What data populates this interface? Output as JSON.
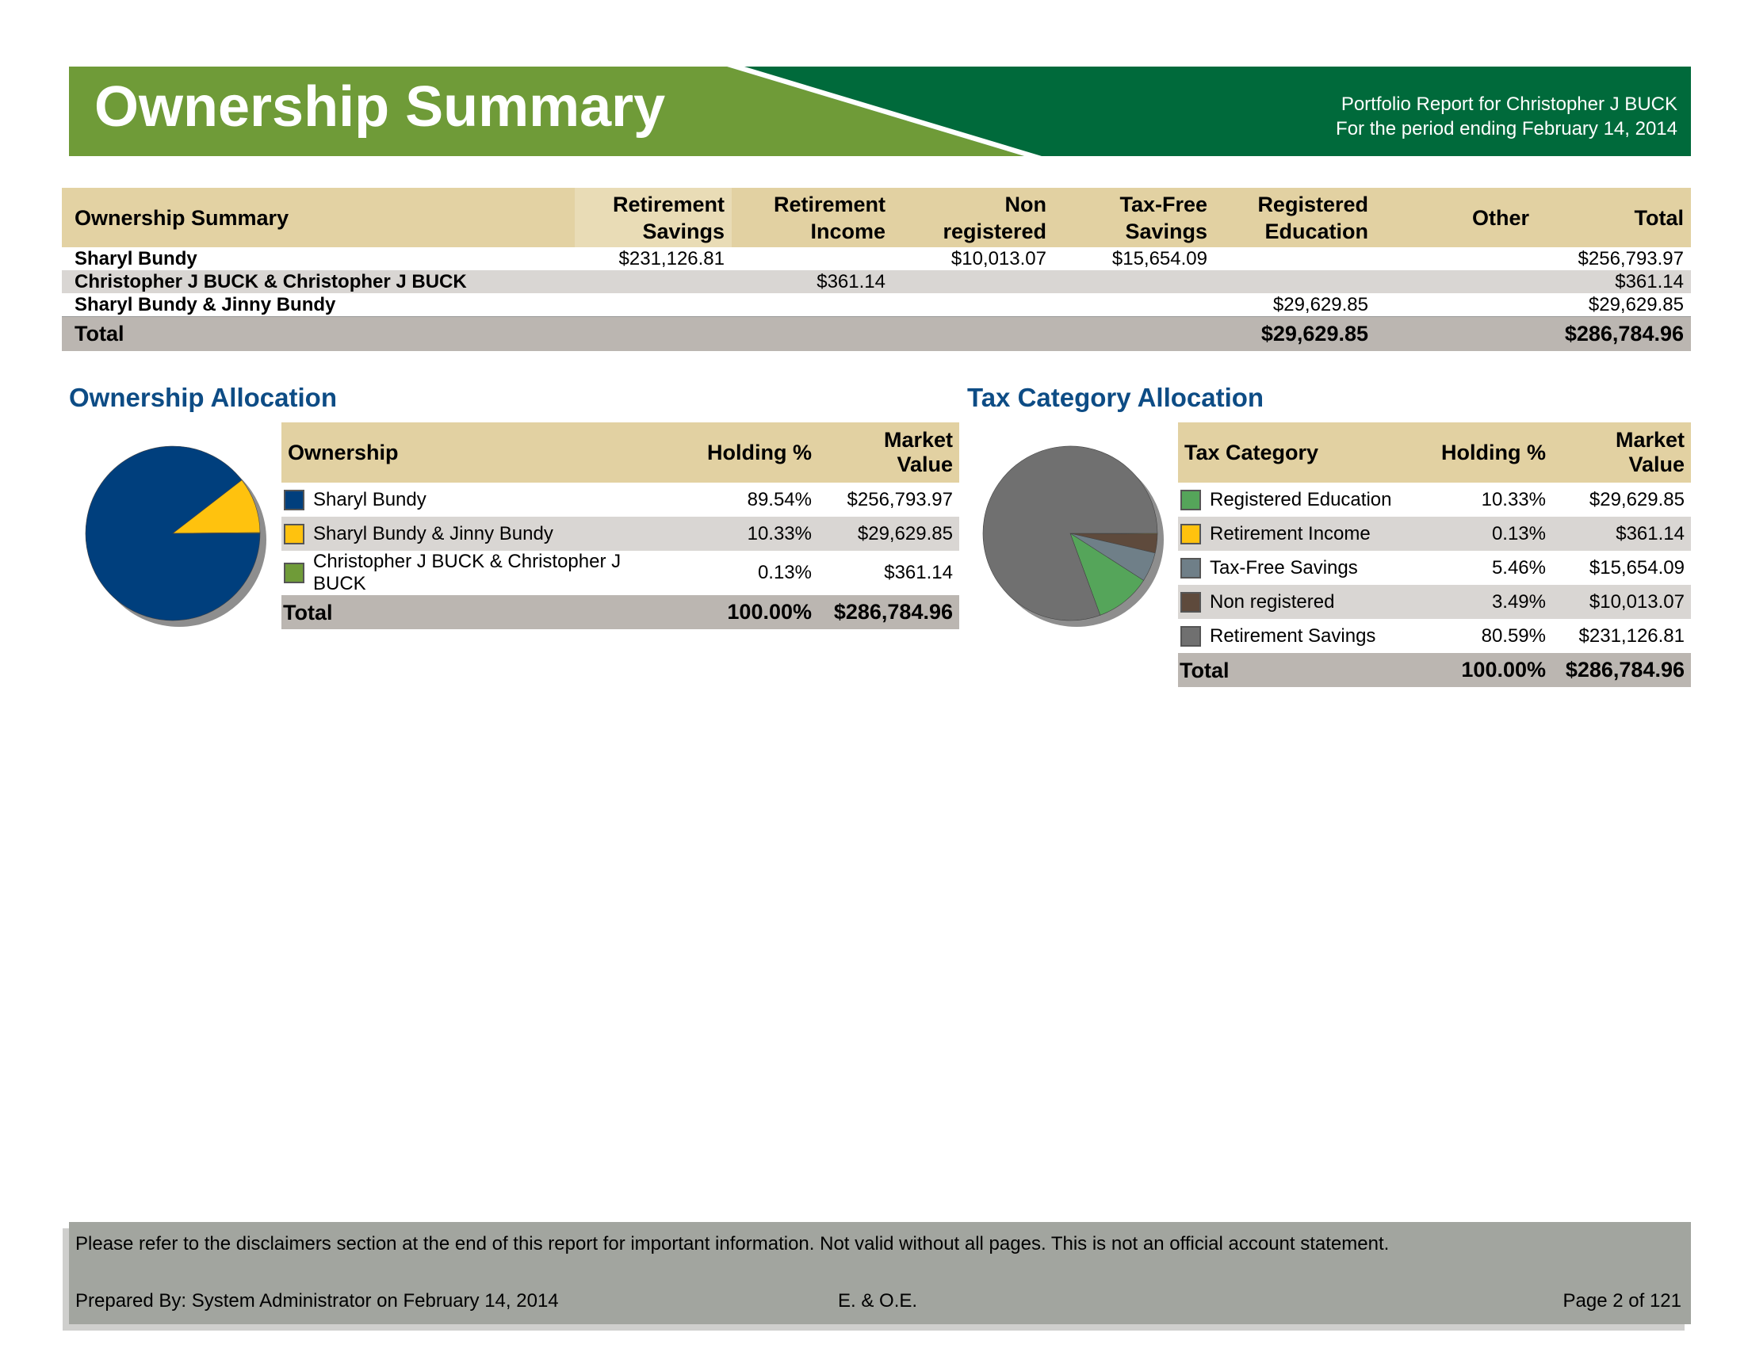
{
  "header": {
    "title": "Ownership Summary",
    "subtitle_line1": "Portfolio Report for Christopher J BUCK",
    "subtitle_line2": "For the period ending February 14, 2014",
    "colors": {
      "light_green": "#6f9b38",
      "dark_green": "#006a3b"
    }
  },
  "summary_table": {
    "columns": [
      "Ownership Summary",
      "Retirement Savings",
      "Retirement Income",
      "Non registered",
      "Tax-Free Savings",
      "Registered Education",
      "Other",
      "Total"
    ],
    "column_lines": [
      [
        "Ownership Summary"
      ],
      [
        "Retirement",
        "Savings"
      ],
      [
        "Retirement",
        "Income"
      ],
      [
        "Non",
        "registered"
      ],
      [
        "Tax-Free",
        "Savings"
      ],
      [
        "Registered",
        "Education"
      ],
      [
        "Other"
      ],
      [
        "Total"
      ]
    ],
    "rows": [
      [
        "Sharyl Bundy",
        "$231,126.81",
        "",
        "$10,013.07",
        "$15,654.09",
        "",
        "",
        "$256,793.97"
      ],
      [
        "Christopher J BUCK & Christopher J BUCK",
        "",
        "$361.14",
        "",
        "",
        "",
        "",
        "$361.14"
      ],
      [
        "Sharyl Bundy & Jinny Bundy",
        "",
        "",
        "",
        "",
        "$29,629.85",
        "",
        "$29,629.85"
      ]
    ],
    "total": [
      "Total",
      "",
      "",
      "",
      "",
      "$29,629.85",
      "",
      "$286,784.96"
    ]
  },
  "ownership_allocation": {
    "title": "Ownership Allocation",
    "columns": [
      "Ownership",
      "Holding %",
      "Market Value"
    ],
    "rows": [
      {
        "name": "Sharyl Bundy",
        "holding": "89.54%",
        "value": "$256,793.97",
        "color": "#003f7d"
      },
      {
        "name": "Sharyl Bundy & Jinny Bundy",
        "holding": "10.33%",
        "value": "$29,629.85",
        "color": "#ffc20e"
      },
      {
        "name": "Christopher J BUCK & Christopher J BUCK",
        "holding": "0.13%",
        "value": "$361.14",
        "color": "#6f9b38"
      }
    ],
    "total": {
      "name": "Total",
      "holding": "100.00%",
      "value": "$286,784.96"
    }
  },
  "tax_allocation": {
    "title": "Tax Category Allocation",
    "columns": [
      "Tax Category",
      "Holding %",
      "Market Value"
    ],
    "rows": [
      {
        "name": "Registered Education",
        "holding": "10.33%",
        "value": "$29,629.85",
        "color": "#55a55a"
      },
      {
        "name": "Retirement Income",
        "holding": "0.13%",
        "value": "$361.14",
        "color": "#ffc20e"
      },
      {
        "name": "Tax-Free Savings",
        "holding": "5.46%",
        "value": "$15,654.09",
        "color": "#6f7f88"
      },
      {
        "name": "Non registered",
        "holding": "3.49%",
        "value": "$10,013.07",
        "color": "#5e4a3c"
      },
      {
        "name": "Retirement Savings",
        "holding": "80.59%",
        "value": "$231,126.81",
        "color": "#707070"
      }
    ],
    "total": {
      "name": "Total",
      "holding": "100.00%",
      "value": "$286,784.96"
    }
  },
  "chart_data": [
    {
      "type": "pie",
      "categories": [
        "Sharyl Bundy",
        "Sharyl Bundy & Jinny Bundy",
        "Christopher J BUCK & Christopher J BUCK"
      ],
      "values": [
        89.54,
        10.33,
        0.13
      ],
      "colors": [
        "#003f7d",
        "#ffc20e",
        "#6f9b38"
      ]
    },
    {
      "type": "pie",
      "categories": [
        "Retirement Income",
        "Non registered",
        "Tax-Free Savings",
        "Registered Education",
        "Retirement Savings"
      ],
      "values": [
        0.13,
        3.49,
        5.46,
        10.33,
        80.59
      ],
      "colors": [
        "#ffc20e",
        "#5e4a3c",
        "#6f7f88",
        "#55a55a",
        "#707070"
      ]
    }
  ],
  "footer": {
    "disclaimer": "Please refer to the disclaimers section at the end of this report for important information. Not valid without all pages. This is not an official account statement.",
    "prepared": "Prepared By: System Administrator on February 14, 2014",
    "eoe": "E. & O.E.",
    "page": "Page 2 of 121"
  }
}
